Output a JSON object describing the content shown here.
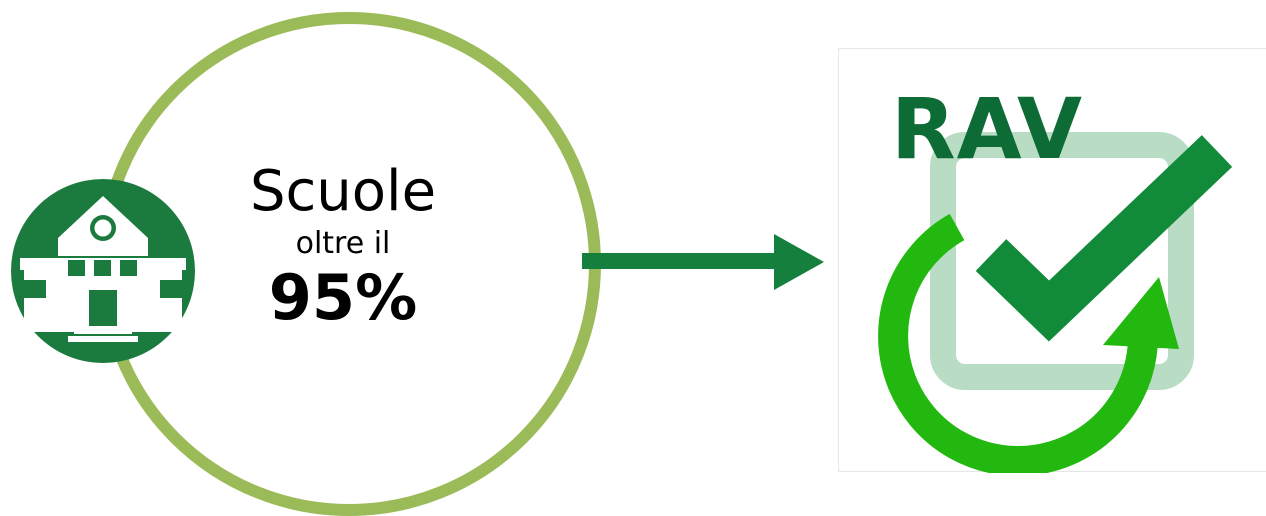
{
  "diagram": {
    "title": "Scuole",
    "subtitle": "oltre il",
    "percentage": "95%"
  },
  "logo": {
    "text": "RAV"
  },
  "colors": {
    "ring": "#9bbb59",
    "dark_green": "#1b7a3e",
    "arrow": "#15803d",
    "logo_text": "#0d6b35",
    "logo_check": "#118a3a",
    "logo_cycle": "#22b80f",
    "logo_box": "#b8dcc4"
  },
  "icons": {
    "school": "school-building-icon",
    "arrow": "arrow-right-icon",
    "checkmark": "checkmark-icon",
    "cycle": "cycle-arrow-icon"
  }
}
